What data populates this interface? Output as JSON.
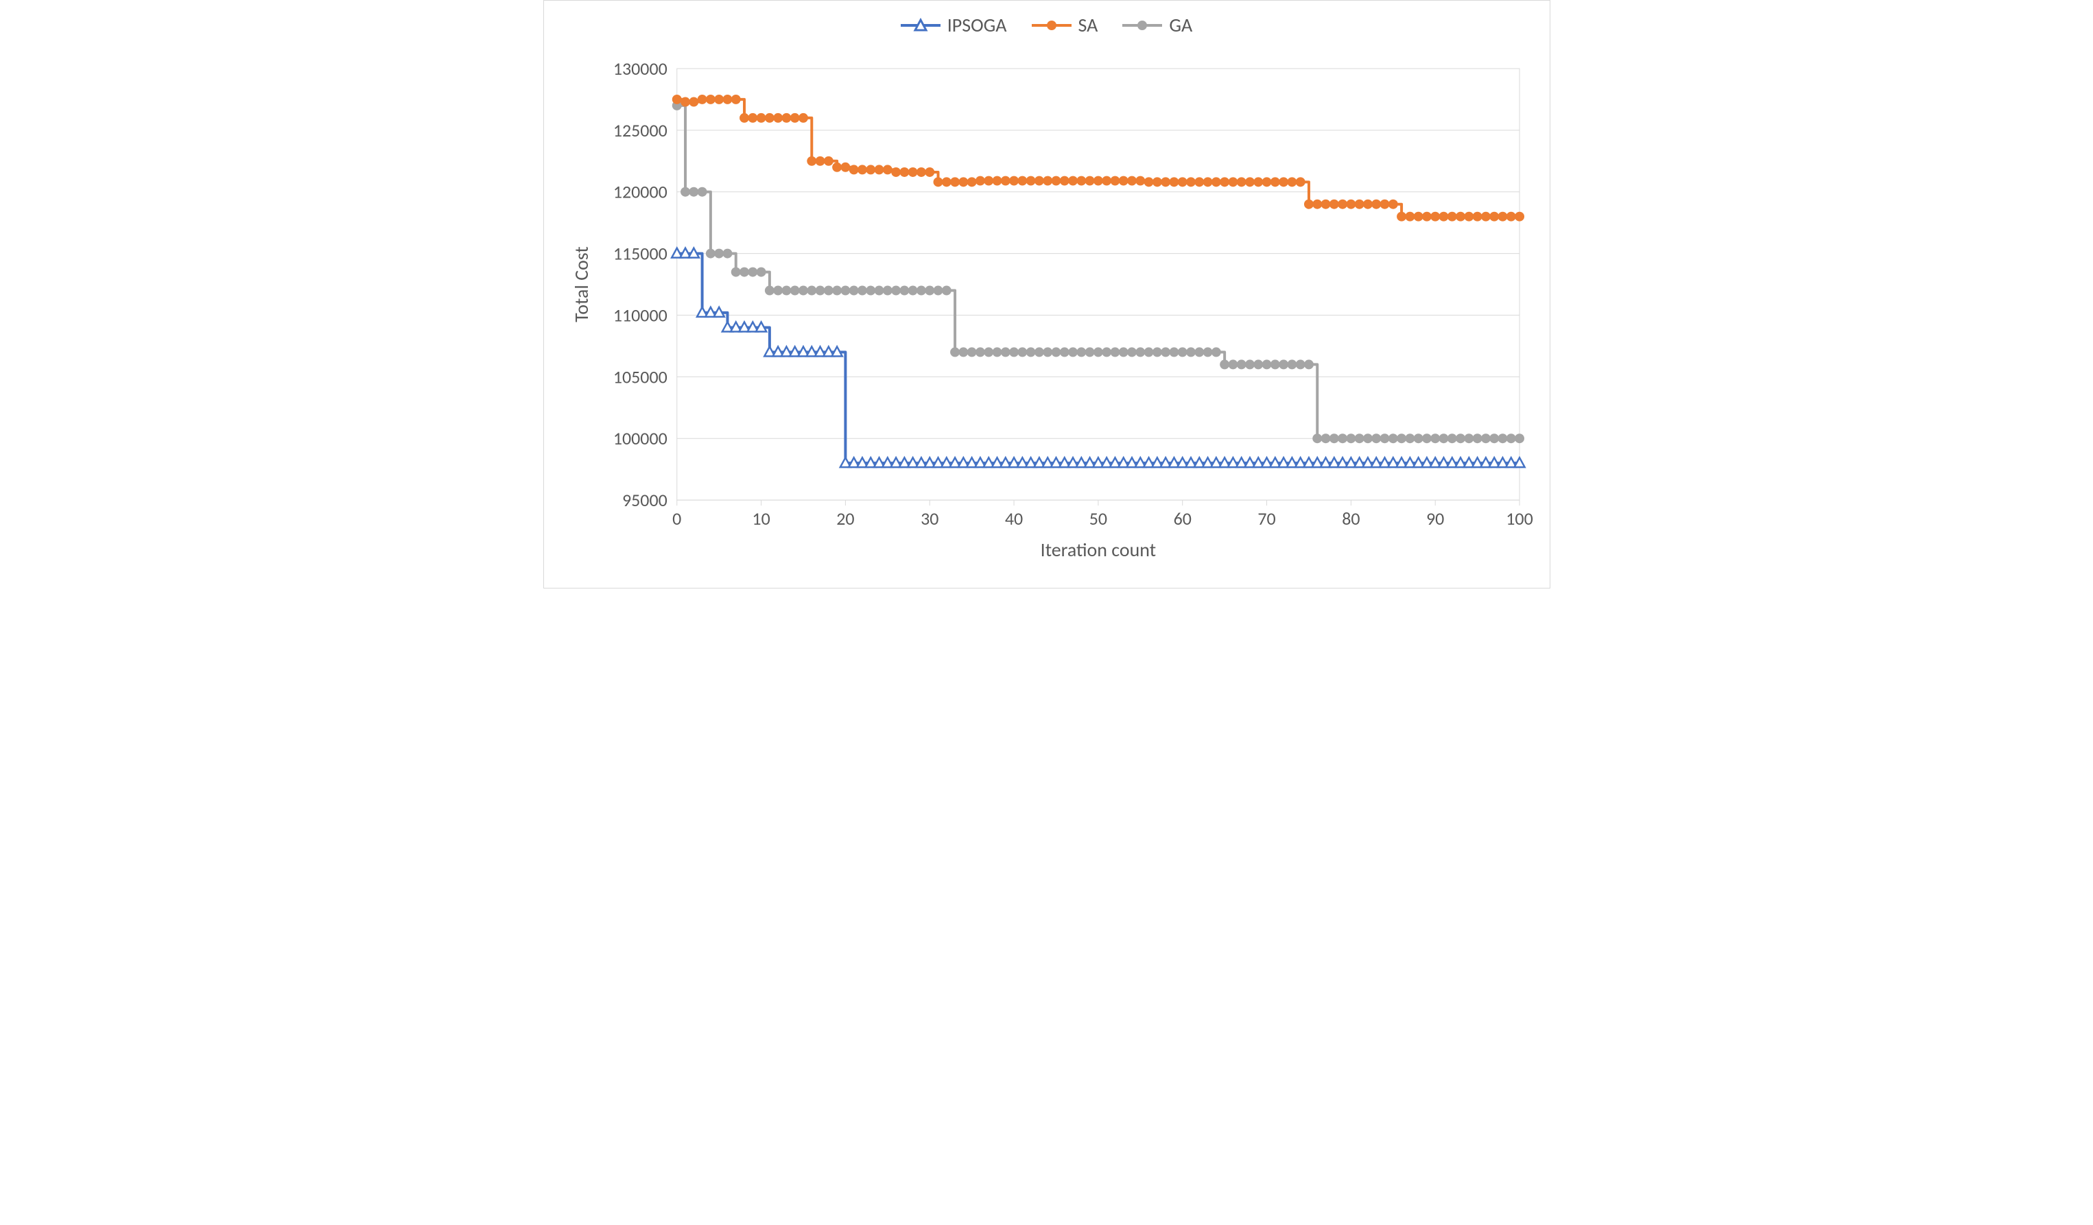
{
  "chart": {
    "type": "line",
    "x_label": "Iteration count",
    "y_label": "Total Cost",
    "xlim": [
      0,
      100
    ],
    "ylim": [
      95000,
      130000
    ],
    "xtick_step": 10,
    "ytick_step": 5000,
    "xticks": [
      0,
      10,
      20,
      30,
      40,
      50,
      60,
      70,
      80,
      90,
      100
    ],
    "yticks": [
      95000,
      100000,
      105000,
      110000,
      115000,
      120000,
      125000,
      130000
    ],
    "background_color": "#ffffff",
    "plot_border_color": "#d9d9d9",
    "grid_color": "#d9d9d9",
    "tick_font_size": 26,
    "label_font_size": 28,
    "tick_color": "#595959",
    "line_width": 4,
    "marker_size": 7,
    "series": [
      {
        "name": "IPSOGA",
        "color": "#4472c4",
        "marker": "triangle",
        "marker_fill": "#ffffff",
        "legend_label": "IPSOGA",
        "data": [
          [
            0,
            115000
          ],
          [
            1,
            115000
          ],
          [
            2,
            115000
          ],
          [
            3,
            110200
          ],
          [
            4,
            110200
          ],
          [
            5,
            110200
          ],
          [
            6,
            109000
          ],
          [
            7,
            109000
          ],
          [
            8,
            109000
          ],
          [
            9,
            109000
          ],
          [
            10,
            109000
          ],
          [
            11,
            107000
          ],
          [
            12,
            107000
          ],
          [
            13,
            107000
          ],
          [
            14,
            107000
          ],
          [
            15,
            107000
          ],
          [
            16,
            107000
          ],
          [
            17,
            107000
          ],
          [
            18,
            107000
          ],
          [
            19,
            107000
          ],
          [
            20,
            98000
          ],
          [
            21,
            98000
          ],
          [
            22,
            98000
          ],
          [
            23,
            98000
          ],
          [
            24,
            98000
          ],
          [
            25,
            98000
          ],
          [
            26,
            98000
          ],
          [
            27,
            98000
          ],
          [
            28,
            98000
          ],
          [
            29,
            98000
          ],
          [
            30,
            98000
          ],
          [
            31,
            98000
          ],
          [
            32,
            98000
          ],
          [
            33,
            98000
          ],
          [
            34,
            98000
          ],
          [
            35,
            98000
          ],
          [
            36,
            98000
          ],
          [
            37,
            98000
          ],
          [
            38,
            98000
          ],
          [
            39,
            98000
          ],
          [
            40,
            98000
          ],
          [
            41,
            98000
          ],
          [
            42,
            98000
          ],
          [
            43,
            98000
          ],
          [
            44,
            98000
          ],
          [
            45,
            98000
          ],
          [
            46,
            98000
          ],
          [
            47,
            98000
          ],
          [
            48,
            98000
          ],
          [
            49,
            98000
          ],
          [
            50,
            98000
          ],
          [
            51,
            98000
          ],
          [
            52,
            98000
          ],
          [
            53,
            98000
          ],
          [
            54,
            98000
          ],
          [
            55,
            98000
          ],
          [
            56,
            98000
          ],
          [
            57,
            98000
          ],
          [
            58,
            98000
          ],
          [
            59,
            98000
          ],
          [
            60,
            98000
          ],
          [
            61,
            98000
          ],
          [
            62,
            98000
          ],
          [
            63,
            98000
          ],
          [
            64,
            98000
          ],
          [
            65,
            98000
          ],
          [
            66,
            98000
          ],
          [
            67,
            98000
          ],
          [
            68,
            98000
          ],
          [
            69,
            98000
          ],
          [
            70,
            98000
          ],
          [
            71,
            98000
          ],
          [
            72,
            98000
          ],
          [
            73,
            98000
          ],
          [
            74,
            98000
          ],
          [
            75,
            98000
          ],
          [
            76,
            98000
          ],
          [
            77,
            98000
          ],
          [
            78,
            98000
          ],
          [
            79,
            98000
          ],
          [
            80,
            98000
          ],
          [
            81,
            98000
          ],
          [
            82,
            98000
          ],
          [
            83,
            98000
          ],
          [
            84,
            98000
          ],
          [
            85,
            98000
          ],
          [
            86,
            98000
          ],
          [
            87,
            98000
          ],
          [
            88,
            98000
          ],
          [
            89,
            98000
          ],
          [
            90,
            98000
          ],
          [
            91,
            98000
          ],
          [
            92,
            98000
          ],
          [
            93,
            98000
          ],
          [
            94,
            98000
          ],
          [
            95,
            98000
          ],
          [
            96,
            98000
          ],
          [
            97,
            98000
          ],
          [
            98,
            98000
          ],
          [
            99,
            98000
          ],
          [
            100,
            98000
          ]
        ]
      },
      {
        "name": "SA",
        "color": "#ed7d31",
        "marker": "circle",
        "marker_fill": "#ed7d31",
        "legend_label": "SA",
        "data": [
          [
            0,
            127500
          ],
          [
            1,
            127300
          ],
          [
            2,
            127300
          ],
          [
            3,
            127500
          ],
          [
            4,
            127500
          ],
          [
            5,
            127500
          ],
          [
            6,
            127500
          ],
          [
            7,
            127500
          ],
          [
            8,
            126000
          ],
          [
            9,
            126000
          ],
          [
            10,
            126000
          ],
          [
            11,
            126000
          ],
          [
            12,
            126000
          ],
          [
            13,
            126000
          ],
          [
            14,
            126000
          ],
          [
            15,
            126000
          ],
          [
            16,
            122500
          ],
          [
            17,
            122500
          ],
          [
            18,
            122500
          ],
          [
            19,
            122000
          ],
          [
            20,
            122000
          ],
          [
            21,
            121800
          ],
          [
            22,
            121800
          ],
          [
            23,
            121800
          ],
          [
            24,
            121800
          ],
          [
            25,
            121800
          ],
          [
            26,
            121600
          ],
          [
            27,
            121600
          ],
          [
            28,
            121600
          ],
          [
            29,
            121600
          ],
          [
            30,
            121600
          ],
          [
            31,
            120800
          ],
          [
            32,
            120800
          ],
          [
            33,
            120800
          ],
          [
            34,
            120800
          ],
          [
            35,
            120800
          ],
          [
            36,
            120900
          ],
          [
            37,
            120900
          ],
          [
            38,
            120900
          ],
          [
            39,
            120900
          ],
          [
            40,
            120900
          ],
          [
            41,
            120900
          ],
          [
            42,
            120900
          ],
          [
            43,
            120900
          ],
          [
            44,
            120900
          ],
          [
            45,
            120900
          ],
          [
            46,
            120900
          ],
          [
            47,
            120900
          ],
          [
            48,
            120900
          ],
          [
            49,
            120900
          ],
          [
            50,
            120900
          ],
          [
            51,
            120900
          ],
          [
            52,
            120900
          ],
          [
            53,
            120900
          ],
          [
            54,
            120900
          ],
          [
            55,
            120900
          ],
          [
            56,
            120800
          ],
          [
            57,
            120800
          ],
          [
            58,
            120800
          ],
          [
            59,
            120800
          ],
          [
            60,
            120800
          ],
          [
            61,
            120800
          ],
          [
            62,
            120800
          ],
          [
            63,
            120800
          ],
          [
            64,
            120800
          ],
          [
            65,
            120800
          ],
          [
            66,
            120800
          ],
          [
            67,
            120800
          ],
          [
            68,
            120800
          ],
          [
            69,
            120800
          ],
          [
            70,
            120800
          ],
          [
            71,
            120800
          ],
          [
            72,
            120800
          ],
          [
            73,
            120800
          ],
          [
            74,
            120800
          ],
          [
            75,
            119000
          ],
          [
            76,
            119000
          ],
          [
            77,
            119000
          ],
          [
            78,
            119000
          ],
          [
            79,
            119000
          ],
          [
            80,
            119000
          ],
          [
            81,
            119000
          ],
          [
            82,
            119000
          ],
          [
            83,
            119000
          ],
          [
            84,
            119000
          ],
          [
            85,
            119000
          ],
          [
            86,
            118000
          ],
          [
            87,
            118000
          ],
          [
            88,
            118000
          ],
          [
            89,
            118000
          ],
          [
            90,
            118000
          ],
          [
            91,
            118000
          ],
          [
            92,
            118000
          ],
          [
            93,
            118000
          ],
          [
            94,
            118000
          ],
          [
            95,
            118000
          ],
          [
            96,
            118000
          ],
          [
            97,
            118000
          ],
          [
            98,
            118000
          ],
          [
            99,
            118000
          ],
          [
            100,
            118000
          ]
        ]
      },
      {
        "name": "GA",
        "color": "#a5a5a5",
        "marker": "circle",
        "marker_fill": "#a5a5a5",
        "legend_label": "GA",
        "data": [
          [
            0,
            127000
          ],
          [
            1,
            120000
          ],
          [
            2,
            120000
          ],
          [
            3,
            120000
          ],
          [
            4,
            115000
          ],
          [
            5,
            115000
          ],
          [
            6,
            115000
          ],
          [
            7,
            113500
          ],
          [
            8,
            113500
          ],
          [
            9,
            113500
          ],
          [
            10,
            113500
          ],
          [
            11,
            112000
          ],
          [
            12,
            112000
          ],
          [
            13,
            112000
          ],
          [
            14,
            112000
          ],
          [
            15,
            112000
          ],
          [
            16,
            112000
          ],
          [
            17,
            112000
          ],
          [
            18,
            112000
          ],
          [
            19,
            112000
          ],
          [
            20,
            112000
          ],
          [
            21,
            112000
          ],
          [
            22,
            112000
          ],
          [
            23,
            112000
          ],
          [
            24,
            112000
          ],
          [
            25,
            112000
          ],
          [
            26,
            112000
          ],
          [
            27,
            112000
          ],
          [
            28,
            112000
          ],
          [
            29,
            112000
          ],
          [
            30,
            112000
          ],
          [
            31,
            112000
          ],
          [
            32,
            112000
          ],
          [
            33,
            107000
          ],
          [
            34,
            107000
          ],
          [
            35,
            107000
          ],
          [
            36,
            107000
          ],
          [
            37,
            107000
          ],
          [
            38,
            107000
          ],
          [
            39,
            107000
          ],
          [
            40,
            107000
          ],
          [
            41,
            107000
          ],
          [
            42,
            107000
          ],
          [
            43,
            107000
          ],
          [
            44,
            107000
          ],
          [
            45,
            107000
          ],
          [
            46,
            107000
          ],
          [
            47,
            107000
          ],
          [
            48,
            107000
          ],
          [
            49,
            107000
          ],
          [
            50,
            107000
          ],
          [
            51,
            107000
          ],
          [
            52,
            107000
          ],
          [
            53,
            107000
          ],
          [
            54,
            107000
          ],
          [
            55,
            107000
          ],
          [
            56,
            107000
          ],
          [
            57,
            107000
          ],
          [
            58,
            107000
          ],
          [
            59,
            107000
          ],
          [
            60,
            107000
          ],
          [
            61,
            107000
          ],
          [
            62,
            107000
          ],
          [
            63,
            107000
          ],
          [
            64,
            107000
          ],
          [
            65,
            106000
          ],
          [
            66,
            106000
          ],
          [
            67,
            106000
          ],
          [
            68,
            106000
          ],
          [
            69,
            106000
          ],
          [
            70,
            106000
          ],
          [
            71,
            106000
          ],
          [
            72,
            106000
          ],
          [
            73,
            106000
          ],
          [
            74,
            106000
          ],
          [
            75,
            106000
          ],
          [
            76,
            100000
          ],
          [
            77,
            100000
          ],
          [
            78,
            100000
          ],
          [
            79,
            100000
          ],
          [
            80,
            100000
          ],
          [
            81,
            100000
          ],
          [
            82,
            100000
          ],
          [
            83,
            100000
          ],
          [
            84,
            100000
          ],
          [
            85,
            100000
          ],
          [
            86,
            100000
          ],
          [
            87,
            100000
          ],
          [
            88,
            100000
          ],
          [
            89,
            100000
          ],
          [
            90,
            100000
          ],
          [
            91,
            100000
          ],
          [
            92,
            100000
          ],
          [
            93,
            100000
          ],
          [
            94,
            100000
          ],
          [
            95,
            100000
          ],
          [
            96,
            100000
          ],
          [
            97,
            100000
          ],
          [
            98,
            100000
          ],
          [
            99,
            100000
          ],
          [
            100,
            100000
          ]
        ]
      }
    ]
  }
}
